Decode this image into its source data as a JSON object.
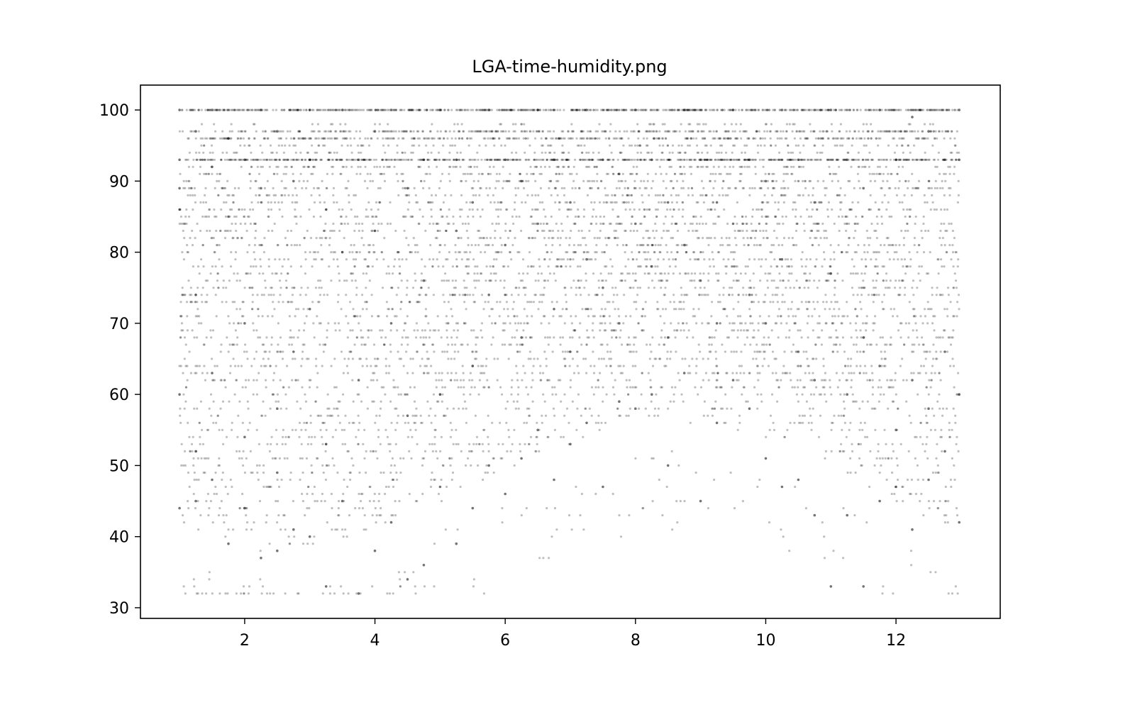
{
  "chart_data": {
    "type": "scatter",
    "title": "LGA-time-humidity.png",
    "xlabel": "",
    "ylabel": "",
    "xlim": [
      0.4,
      13.6
    ],
    "ylim": [
      28.5,
      103.5
    ],
    "x_ticks": [
      2,
      4,
      6,
      8,
      10,
      12
    ],
    "y_ticks": [
      30,
      40,
      50,
      60,
      70,
      80,
      90,
      100
    ],
    "grid": false,
    "legend": "none",
    "point_color": "#000000",
    "point_alpha": 0.25,
    "x_range": [
      1.0,
      12.97
    ],
    "value_domain": "integer humidity percent, one point per hourly observation",
    "series": [
      {
        "values": [
          [
            1.0,
            100
          ],
          [
            1.0,
            93
          ],
          [
            1.0,
            89
          ],
          [
            1.0,
            86
          ],
          [
            1.0,
            60
          ],
          [
            1.0,
            44
          ],
          [
            1.25,
            97
          ],
          [
            1.25,
            74
          ],
          [
            1.25,
            52
          ],
          [
            1.25,
            45
          ],
          [
            1.5,
            100
          ],
          [
            1.5,
            92
          ],
          [
            1.5,
            63
          ],
          [
            1.5,
            48
          ],
          [
            1.75,
            96
          ],
          [
            1.75,
            85
          ],
          [
            1.75,
            39
          ],
          [
            2.0,
            93
          ],
          [
            2.0,
            70
          ],
          [
            2.0,
            54
          ],
          [
            2.0,
            44
          ],
          [
            2.25,
            100
          ],
          [
            2.25,
            89
          ],
          [
            2.25,
            37
          ],
          [
            2.5,
            97
          ],
          [
            2.5,
            58
          ],
          [
            2.5,
            49
          ],
          [
            2.5,
            38
          ],
          [
            2.75,
            90
          ],
          [
            2.75,
            66
          ],
          [
            2.75,
            41
          ],
          [
            3.0,
            100
          ],
          [
            3.0,
            93
          ],
          [
            3.0,
            72
          ],
          [
            3.0,
            40
          ],
          [
            3.25,
            86
          ],
          [
            3.25,
            53
          ],
          [
            3.25,
            33
          ],
          [
            3.5,
            100
          ],
          [
            3.5,
            80
          ],
          [
            3.5,
            45
          ],
          [
            3.75,
            93
          ],
          [
            3.75,
            62
          ],
          [
            3.75,
            32
          ],
          [
            4.0,
            97
          ],
          [
            4.0,
            83
          ],
          [
            4.0,
            38
          ],
          [
            4.25,
            100
          ],
          [
            4.25,
            70
          ],
          [
            4.25,
            42
          ],
          [
            4.5,
            89
          ],
          [
            4.5,
            57
          ],
          [
            4.5,
            34
          ],
          [
            4.75,
            93
          ],
          [
            4.75,
            76
          ],
          [
            4.75,
            36
          ],
          [
            5.0,
            100
          ],
          [
            5.0,
            60
          ],
          [
            5.0,
            47
          ],
          [
            5.25,
            93
          ],
          [
            5.25,
            83
          ],
          [
            5.25,
            39
          ],
          [
            5.5,
            87
          ],
          [
            5.5,
            64
          ],
          [
            5.5,
            44
          ],
          [
            5.75,
            100
          ],
          [
            5.75,
            74
          ],
          [
            5.75,
            50
          ],
          [
            6.0,
            93
          ],
          [
            6.0,
            81
          ],
          [
            6.0,
            46
          ],
          [
            6.25,
            90
          ],
          [
            6.25,
            68
          ],
          [
            6.25,
            51
          ],
          [
            6.5,
            100
          ],
          [
            6.5,
            84
          ],
          [
            6.5,
            55
          ],
          [
            6.75,
            93
          ],
          [
            6.75,
            72
          ],
          [
            6.75,
            48
          ],
          [
            7.0,
            87
          ],
          [
            7.0,
            66
          ],
          [
            7.0,
            53
          ],
          [
            7.25,
            100
          ],
          [
            7.25,
            79
          ],
          [
            7.25,
            56
          ],
          [
            7.5,
            93
          ],
          [
            7.5,
            75
          ],
          [
            7.5,
            47
          ],
          [
            7.75,
            91
          ],
          [
            7.75,
            70
          ],
          [
            7.75,
            59
          ],
          [
            8.0,
            100
          ],
          [
            8.0,
            84
          ],
          [
            8.0,
            58
          ],
          [
            8.25,
            93
          ],
          [
            8.25,
            78
          ],
          [
            8.25,
            60
          ],
          [
            8.5,
            87
          ],
          [
            8.5,
            68
          ],
          [
            8.5,
            50
          ],
          [
            8.75,
            100
          ],
          [
            8.75,
            81
          ],
          [
            8.75,
            63
          ],
          [
            9.0,
            93
          ],
          [
            9.0,
            76
          ],
          [
            9.0,
            45
          ],
          [
            9.25,
            87
          ],
          [
            9.25,
            70
          ],
          [
            9.25,
            56
          ],
          [
            9.5,
            100
          ],
          [
            9.5,
            84
          ],
          [
            9.5,
            62
          ],
          [
            9.75,
            93
          ],
          [
            9.75,
            74
          ],
          [
            9.75,
            58
          ],
          [
            10.0,
            90
          ],
          [
            10.0,
            70
          ],
          [
            10.0,
            51
          ],
          [
            10.25,
            100
          ],
          [
            10.25,
            79
          ],
          [
            10.25,
            47
          ],
          [
            10.5,
            93
          ],
          [
            10.5,
            66
          ],
          [
            10.5,
            48
          ],
          [
            10.75,
            87
          ],
          [
            10.75,
            62
          ],
          [
            10.75,
            43
          ],
          [
            11.0,
            100
          ],
          [
            11.0,
            77
          ],
          [
            11.0,
            33
          ],
          [
            11.25,
            93
          ],
          [
            11.25,
            60
          ],
          [
            11.25,
            43
          ],
          [
            11.5,
            89
          ],
          [
            11.5,
            68
          ],
          [
            11.5,
            33
          ],
          [
            11.75,
            100
          ],
          [
            11.75,
            64
          ],
          [
            11.75,
            45
          ],
          [
            12.0,
            93
          ],
          [
            12.0,
            55
          ],
          [
            12.0,
            47
          ],
          [
            12.25,
            99
          ],
          [
            12.25,
            62
          ],
          [
            12.25,
            41
          ],
          [
            12.5,
            97
          ],
          [
            12.5,
            58
          ],
          [
            12.5,
            48
          ],
          [
            12.75,
            93
          ],
          [
            12.75,
            66
          ],
          [
            12.75,
            52
          ],
          [
            12.97,
            100
          ],
          [
            12.97,
            93
          ],
          [
            12.97,
            60
          ],
          [
            12.97,
            42
          ]
        ]
      }
    ]
  }
}
